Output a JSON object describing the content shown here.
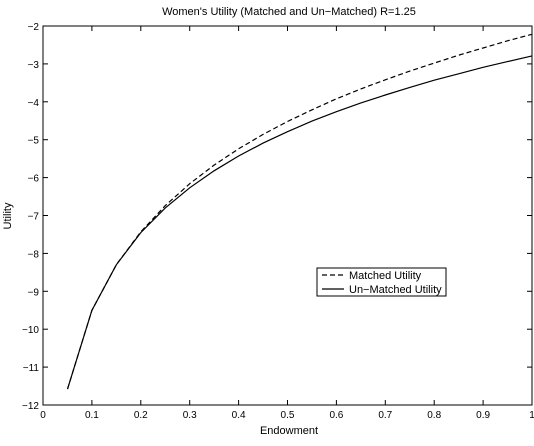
{
  "chart_data": {
    "type": "line",
    "title": "Women's Utility (Matched and Un−Matched) R=1.25",
    "xlabel": "Endowment",
    "ylabel": "Utility",
    "xlim": [
      0,
      1
    ],
    "ylim": [
      -12,
      -2
    ],
    "xticks": [
      0,
      0.1,
      0.2,
      0.3,
      0.4,
      0.5,
      0.6,
      0.7,
      0.8,
      0.9,
      1
    ],
    "xtick_labels": [
      "0",
      "0.1",
      "0.2",
      "0.3",
      "0.4",
      "0.5",
      "0.6",
      "0.7",
      "0.8",
      "0.9",
      "1"
    ],
    "yticks": [
      -12,
      -11,
      -10,
      -9,
      -8,
      -7,
      -6,
      -5,
      -4,
      -3,
      -2
    ],
    "ytick_labels": [
      "−12",
      "−11",
      "−10",
      "−9",
      "−8",
      "−7",
      "−6",
      "−5",
      "−4",
      "−3",
      "−2"
    ],
    "grid": false,
    "legend_position": "center-right",
    "series": [
      {
        "name": "Matched Utility",
        "line_style": "dashed",
        "color": "#000000",
        "x": [
          0.05,
          0.1,
          0.15,
          0.2,
          0.25,
          0.3,
          0.35,
          0.4,
          0.45,
          0.5,
          0.55,
          0.6,
          0.65,
          0.7,
          0.75,
          0.8,
          0.85,
          0.9,
          0.95,
          1.0
        ],
        "y": [
          -11.58,
          -9.5,
          -8.3,
          -7.43,
          -6.74,
          -6.16,
          -5.67,
          -5.24,
          -4.86,
          -4.52,
          -4.21,
          -3.92,
          -3.66,
          -3.42,
          -3.19,
          -2.98,
          -2.77,
          -2.58,
          -2.39,
          -2.22
        ]
      },
      {
        "name": "Un−Matched Utility",
        "line_style": "solid",
        "color": "#000000",
        "x": [
          0.05,
          0.1,
          0.15,
          0.2,
          0.25,
          0.3,
          0.35,
          0.4,
          0.45,
          0.5,
          0.55,
          0.6,
          0.65,
          0.7,
          0.75,
          0.8,
          0.85,
          0.9,
          0.95,
          1.0
        ],
        "y": [
          -11.58,
          -9.5,
          -8.3,
          -7.45,
          -6.8,
          -6.27,
          -5.82,
          -5.43,
          -5.09,
          -4.79,
          -4.51,
          -4.26,
          -4.03,
          -3.82,
          -3.62,
          -3.43,
          -3.26,
          -3.09,
          -2.94,
          -2.79
        ]
      }
    ]
  }
}
